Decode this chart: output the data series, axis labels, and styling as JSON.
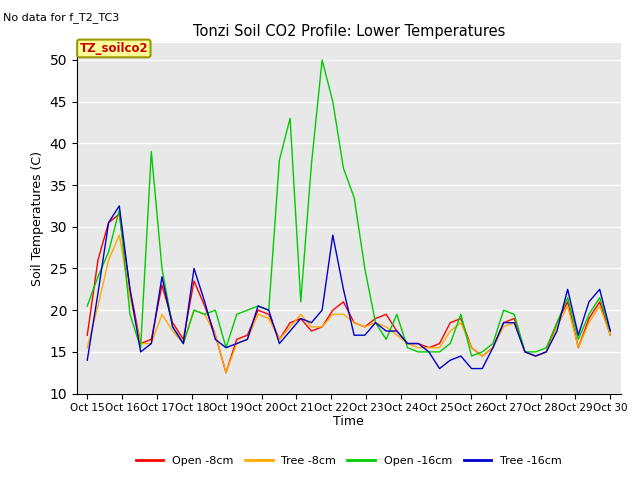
{
  "title": "Tonzi Soil CO2 Profile: Lower Temperatures",
  "subtitle": "No data for f_T2_TC3",
  "ylabel": "Soil Temperatures (C)",
  "xlabel": "Time",
  "annotation": "TZ_soilco2",
  "ylim": [
    10,
    52
  ],
  "yticks": [
    10,
    15,
    20,
    25,
    30,
    35,
    40,
    45,
    50
  ],
  "bg_color": "#e8e8e8",
  "line_colors": {
    "open8": "#ff0000",
    "tree8": "#ffaa00",
    "open16": "#00cc00",
    "tree16": "#0000cc"
  },
  "legend_labels": [
    "Open -8cm",
    "Tree -8cm",
    "Open -16cm",
    "Tree -16cm"
  ],
  "x_tick_labels": [
    "Oct 15",
    "Oct 16",
    "Oct 17",
    "Oct 18",
    "Oct 19",
    "Oct 20",
    "Oct 21",
    "Oct 22",
    "Oct 23",
    "Oct 24",
    "Oct 25",
    "Oct 26",
    "Oct 27",
    "Oct 28",
    "Oct 29",
    "Oct 30"
  ],
  "open8": [
    17.0,
    26.0,
    30.5,
    31.5,
    22.5,
    16.0,
    16.5,
    23.0,
    18.5,
    16.5,
    23.5,
    20.5,
    17.0,
    12.5,
    16.5,
    17.0,
    20.0,
    19.5,
    16.5,
    18.5,
    19.0,
    17.5,
    18.0,
    20.0,
    21.0,
    18.5,
    18.0,
    19.0,
    19.5,
    17.5,
    16.0,
    16.0,
    15.5,
    16.0,
    18.5,
    19.0,
    15.5,
    14.5,
    15.5,
    18.5,
    19.0,
    15.0,
    14.5,
    15.0,
    18.5,
    21.0,
    15.5,
    19.0,
    21.0,
    17.0
  ],
  "tree8": [
    15.5,
    20.5,
    26.0,
    29.0,
    21.5,
    16.0,
    16.0,
    19.5,
    17.5,
    16.0,
    20.0,
    19.5,
    17.0,
    12.5,
    16.0,
    16.5,
    19.5,
    19.0,
    16.5,
    18.0,
    19.5,
    18.0,
    18.0,
    19.5,
    19.5,
    18.5,
    18.0,
    18.5,
    18.0,
    17.0,
    16.0,
    15.5,
    15.5,
    15.5,
    17.5,
    18.5,
    15.5,
    14.5,
    15.5,
    18.0,
    18.5,
    15.0,
    14.5,
    15.0,
    18.0,
    20.5,
    15.5,
    18.5,
    20.5,
    17.0
  ],
  "open16": [
    20.5,
    24.0,
    27.0,
    32.0,
    19.5,
    15.5,
    39.0,
    25.0,
    18.0,
    16.0,
    20.0,
    19.5,
    20.0,
    15.5,
    19.5,
    20.0,
    20.5,
    20.0,
    38.0,
    43.0,
    21.0,
    37.5,
    50.0,
    45.0,
    37.0,
    33.5,
    25.0,
    18.5,
    16.5,
    19.5,
    15.5,
    15.0,
    15.0,
    15.0,
    16.0,
    19.5,
    14.5,
    15.0,
    16.0,
    20.0,
    19.5,
    15.0,
    15.0,
    15.5,
    18.5,
    21.5,
    16.5,
    19.5,
    21.5,
    17.5
  ],
  "tree16": [
    14.0,
    22.0,
    30.5,
    32.5,
    22.5,
    15.0,
    16.0,
    24.0,
    18.0,
    16.0,
    25.0,
    21.0,
    16.5,
    15.5,
    16.0,
    16.5,
    20.5,
    20.0,
    16.0,
    17.5,
    19.0,
    18.5,
    20.0,
    29.0,
    22.5,
    17.0,
    17.0,
    18.5,
    17.5,
    17.5,
    16.0,
    16.0,
    15.0,
    13.0,
    14.0,
    14.5,
    13.0,
    13.0,
    15.5,
    18.5,
    18.5,
    15.0,
    14.5,
    15.0,
    17.5,
    22.5,
    17.0,
    21.0,
    22.5,
    17.5
  ]
}
